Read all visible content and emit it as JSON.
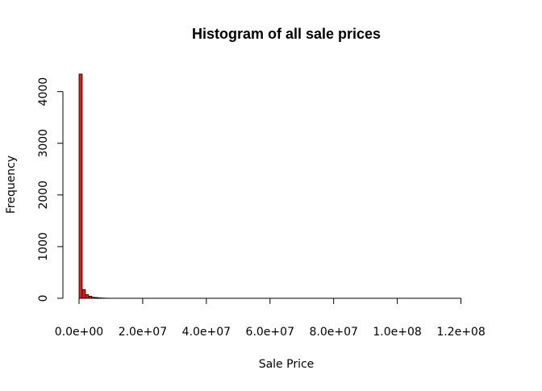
{
  "chart_data": {
    "type": "bar",
    "title": "Histogram of all sale prices",
    "xlabel": "Sale Price",
    "ylabel": "Frequency",
    "bar_color": "#e31a1c",
    "bar_stroke": "#000000",
    "bin_width": 1000000,
    "x_start": 0,
    "bin_counts": [
      4340,
      170,
      70,
      40,
      20,
      15,
      8,
      5,
      3,
      2
    ],
    "xlim": [
      0,
      130000000
    ],
    "ylim": [
      0,
      4400
    ],
    "x_ticks": [
      {
        "value": 0,
        "label": "0.0e+00"
      },
      {
        "value": 20000000,
        "label": "2.0e+07"
      },
      {
        "value": 40000000,
        "label": "4.0e+07"
      },
      {
        "value": 60000000,
        "label": "6.0e+07"
      },
      {
        "value": 80000000,
        "label": "8.0e+07"
      },
      {
        "value": 100000000,
        "label": "1.0e+08"
      },
      {
        "value": 120000000,
        "label": "1.2e+08"
      }
    ],
    "y_ticks": [
      {
        "value": 0,
        "label": "0"
      },
      {
        "value": 1000,
        "label": "1000"
      },
      {
        "value": 2000,
        "label": "2000"
      },
      {
        "value": 3000,
        "label": "3000"
      },
      {
        "value": 4000,
        "label": "4000"
      }
    ],
    "grid": false
  }
}
